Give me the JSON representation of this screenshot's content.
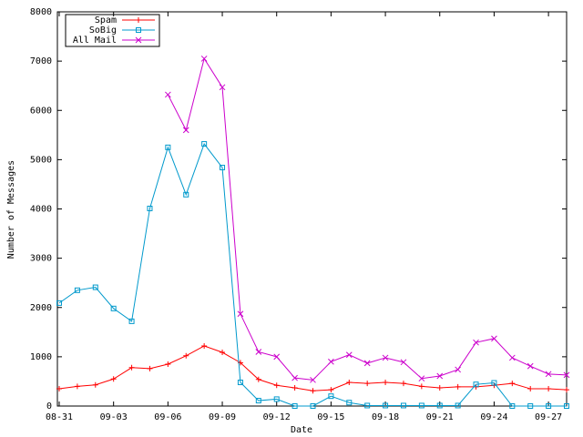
{
  "chart_data": {
    "type": "line",
    "xlabel": "Date",
    "ylabel": "Number of Messages",
    "categories": [
      "08-31",
      null,
      null,
      "09-03",
      null,
      null,
      "09-06",
      null,
      null,
      "09-09",
      null,
      null,
      "09-12",
      null,
      null,
      "09-15",
      null,
      null,
      "09-18",
      null,
      null,
      "09-21",
      null,
      null,
      "09-24",
      null,
      null,
      "09-27",
      null
    ],
    "series": [
      {
        "name": "Spam",
        "color": "#ff0000",
        "marker": "plus",
        "values": [
          350,
          400,
          430,
          550,
          780,
          760,
          850,
          1020,
          1220,
          1090,
          880,
          540,
          420,
          370,
          310,
          330,
          480,
          460,
          480,
          460,
          400,
          370,
          390,
          390,
          420,
          460,
          350,
          350,
          330
        ]
      },
      {
        "name": "SoBig",
        "color": "#0099cc",
        "marker": "square",
        "values": [
          2090,
          2350,
          2410,
          1980,
          1720,
          4010,
          5250,
          4290,
          5320,
          4840,
          480,
          110,
          140,
          0,
          0,
          200,
          70,
          10,
          10,
          10,
          10,
          10,
          10,
          440,
          470,
          0,
          0,
          0,
          0
        ]
      },
      {
        "name": "All Mail",
        "color": "#cc00cc",
        "marker": "cross",
        "values": [
          null,
          null,
          null,
          null,
          null,
          null,
          6320,
          5600,
          7050,
          6470,
          1870,
          1100,
          1000,
          570,
          530,
          900,
          1040,
          870,
          980,
          890,
          560,
          610,
          740,
          1290,
          1370,
          980,
          810,
          650,
          630
        ]
      }
    ],
    "ylim": [
      0,
      8000
    ],
    "yticks": [
      0,
      1000,
      2000,
      3000,
      4000,
      5000,
      6000,
      7000,
      8000
    ],
    "legend": "top-left"
  }
}
